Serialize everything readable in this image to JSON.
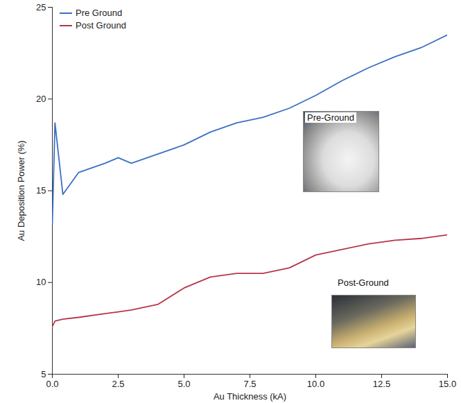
{
  "chart_data": {
    "type": "line",
    "x_label": "Au Thickness (kA)",
    "y_label": "Au Deposition Power (%)",
    "x": [
      0,
      0.1,
      0.4,
      1,
      2,
      2.5,
      3,
      4,
      5,
      6,
      7,
      8,
      9,
      10,
      11,
      12,
      13,
      14,
      15
    ],
    "series": [
      {
        "name": "Pre Ground",
        "color": "#3b6fc4",
        "values": [
          13.2,
          18.7,
          14.8,
          16,
          16.5,
          16.8,
          16.5,
          17,
          17.5,
          18.2,
          18.7,
          19,
          19.5,
          20.2,
          21,
          21.7,
          22.3,
          22.8,
          23.5
        ]
      },
      {
        "name": "Post Ground",
        "color": "#b5364a",
        "values": [
          7.6,
          7.9,
          8,
          8.1,
          8.3,
          8.4,
          8.5,
          8.8,
          9.7,
          10.3,
          10.5,
          10.5,
          10.8,
          11.5,
          11.8,
          12.1,
          12.3,
          12.4,
          12.6
        ]
      }
    ],
    "xlim": [
      0,
      15
    ],
    "xticks": [
      {
        "value": 0,
        "label": "0.0"
      },
      {
        "value": 2.5,
        "label": "2.5"
      },
      {
        "value": 5,
        "label": "5.0"
      },
      {
        "value": 7.5,
        "label": "7.5"
      },
      {
        "value": 10,
        "label": "10.0"
      },
      {
        "value": 12.5,
        "label": "12.5"
      },
      {
        "value": 15,
        "label": "15.0"
      }
    ],
    "ylim": [
      5,
      25
    ],
    "yticks": [
      5,
      10,
      15,
      20,
      25
    ],
    "legend": "upper left",
    "grid": false,
    "annotations": [
      "Pre-Ground",
      "Post-Ground"
    ]
  }
}
